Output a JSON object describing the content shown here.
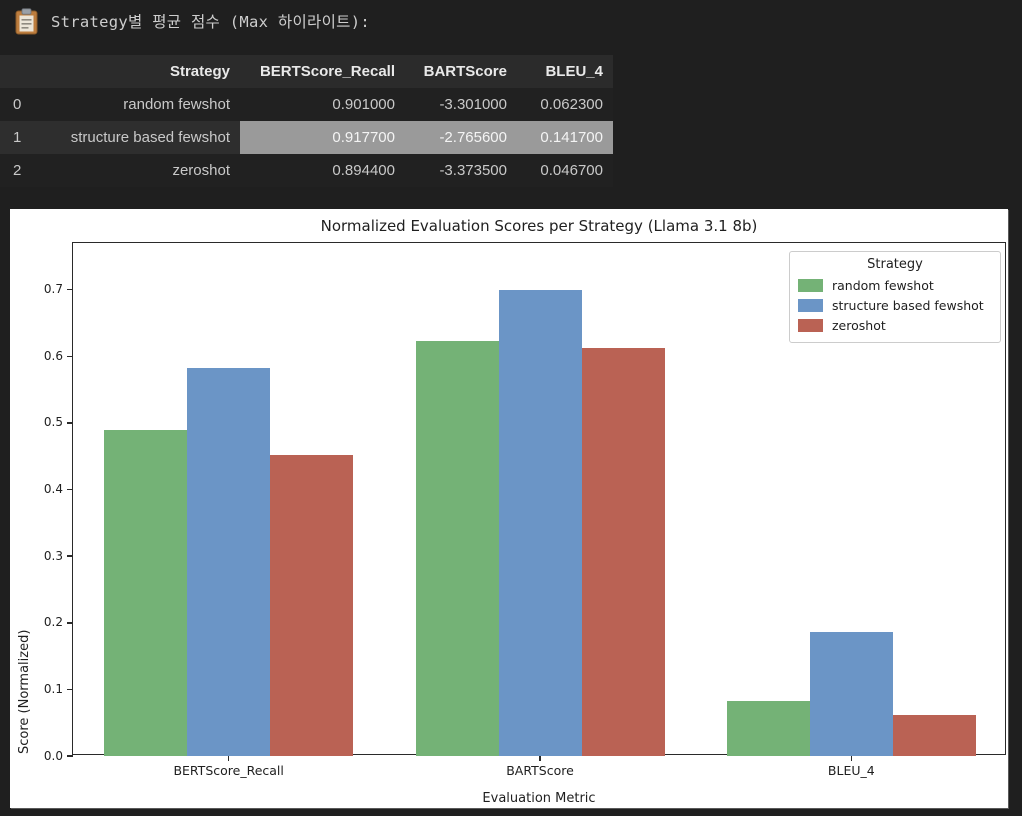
{
  "header": {
    "icon": "clipboard-icon",
    "text": "Strategy별 평균 점수 (Max 하이라이트):"
  },
  "table": {
    "columns": [
      "",
      "Strategy",
      "BERTScore_Recall",
      "BARTScore",
      "BLEU_4"
    ],
    "rows": [
      {
        "index": "0",
        "strategy": "random fewshot",
        "values": [
          "0.901000",
          "-3.301000",
          "0.062300"
        ],
        "highlighted": false
      },
      {
        "index": "1",
        "strategy": "structure based fewshot",
        "values": [
          "0.917700",
          "-2.765600",
          "0.141700"
        ],
        "highlighted": true
      },
      {
        "index": "2",
        "strategy": "zeroshot",
        "values": [
          "0.894400",
          "-3.373500",
          "0.046700"
        ],
        "highlighted": false
      }
    ],
    "highlight_color": "#9a9a9a"
  },
  "chart_data": {
    "type": "bar",
    "title": "Normalized Evaluation Scores per Strategy (Llama 3.1 8b)",
    "xlabel": "Evaluation Metric",
    "ylabel": "Score (Normalized)",
    "categories": [
      "BERTScore_Recall",
      "BARTScore",
      "BLEU_4"
    ],
    "series": [
      {
        "name": "random fewshot",
        "color": "#74b276",
        "values": [
          0.489,
          0.623,
          0.082
        ]
      },
      {
        "name": "structure based fewshot",
        "color": "#6b95c6",
        "values": [
          0.582,
          0.7,
          0.186
        ]
      },
      {
        "name": "zeroshot",
        "color": "#ba6254",
        "values": [
          0.452,
          0.612,
          0.061
        ]
      }
    ],
    "ylim": [
      0,
      0.77
    ],
    "yticks": [
      0.0,
      0.1,
      0.2,
      0.3,
      0.4,
      0.5,
      0.6,
      0.7
    ],
    "legend_title": "Strategy",
    "legend_position": "upper right",
    "grid": false
  }
}
